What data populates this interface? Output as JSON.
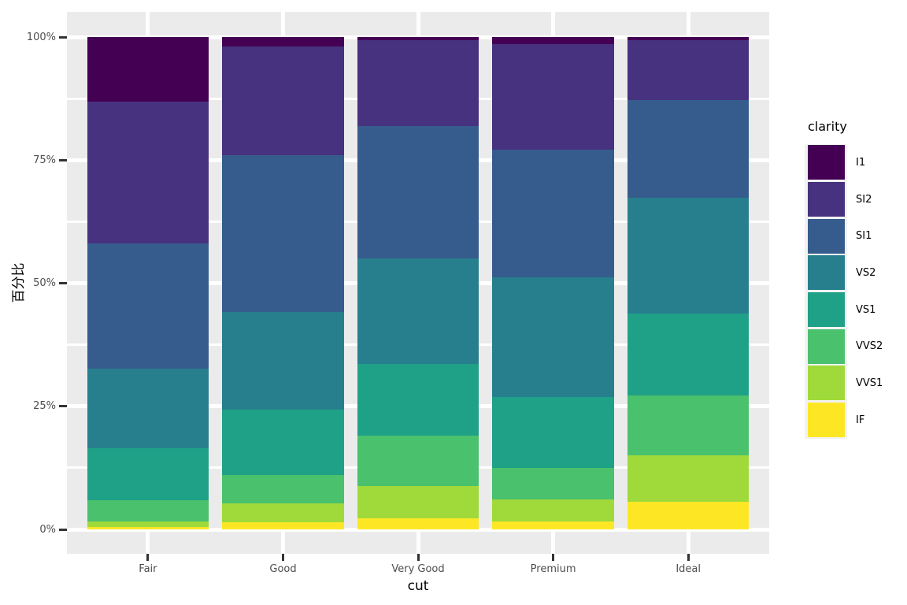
{
  "chart_data": {
    "type": "bar",
    "stacked": true,
    "normalized": "percent",
    "title": "",
    "xlabel": "cut",
    "ylabel": "百分比",
    "legend_title": "clarity",
    "legend_position": "right",
    "categories": [
      "Fair",
      "Good",
      "Very Good",
      "Premium",
      "Ideal"
    ],
    "y_tick_values": [
      0,
      25,
      50,
      75,
      100
    ],
    "y_tick_labels": [
      "0%",
      "25%",
      "50%",
      "75%",
      "100%"
    ],
    "y_minor_tick_values": [
      12.5,
      37.5,
      62.5,
      87.5
    ],
    "ylim": [
      0,
      100
    ],
    "grid": true,
    "stack_order_top_to_bottom": [
      "I1",
      "SI2",
      "SI1",
      "VS2",
      "VS1",
      "VVS2",
      "VVS1",
      "IF"
    ],
    "series": [
      {
        "name": "I1",
        "color": "#440154",
        "values": [
          13.04,
          1.96,
          0.7,
          1.49,
          0.68
        ]
      },
      {
        "name": "SI2",
        "color": "#46327E",
        "values": [
          28.94,
          22.03,
          17.38,
          21.38,
          12.06
        ]
      },
      {
        "name": "SI1",
        "color": "#365C8D",
        "values": [
          25.34,
          31.8,
          26.82,
          25.92,
          19.87
        ]
      },
      {
        "name": "VS2",
        "color": "#277F8E",
        "values": [
          16.21,
          19.93,
          21.44,
          24.34,
          23.53
        ]
      },
      {
        "name": "VS1",
        "color": "#1FA187",
        "values": [
          10.56,
          13.21,
          14.69,
          14.42,
          16.65
        ]
      },
      {
        "name": "VVS2",
        "color": "#4AC16D",
        "values": [
          4.29,
          5.83,
          10.22,
          6.31,
          12.09
        ]
      },
      {
        "name": "VVS1",
        "color": "#9FDA3A",
        "values": [
          1.06,
          3.79,
          6.53,
          4.47,
          9.5
        ]
      },
      {
        "name": "IF",
        "color": "#FDE725",
        "values": [
          0.56,
          1.45,
          2.22,
          1.67,
          5.62
        ]
      }
    ],
    "colors": {
      "panel_background": "#EBEBEB",
      "gridline": "#FFFFFF",
      "tick_mark": "#333333",
      "tick_label": "#4D4D4D",
      "axis_title": "#000000",
      "legend_key_background": "#F2F2F2"
    }
  }
}
